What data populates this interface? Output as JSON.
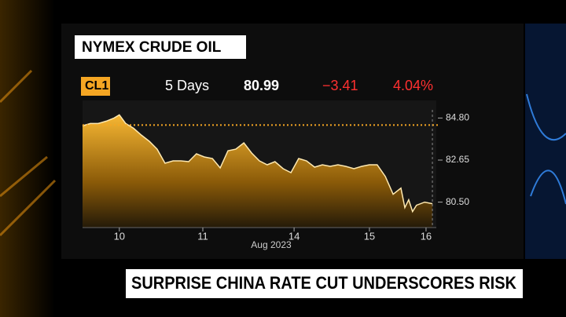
{
  "chart_data": {
    "type": "area",
    "title": "NYMEX CRUDE OIL",
    "header": {
      "period": "5 Days",
      "last": "80.99",
      "change": "−3.41",
      "change_pct": "4.04%"
    },
    "x": [
      0,
      2.2,
      4.4,
      6.7,
      8.9,
      10.4,
      12.2,
      14.4,
      16.7,
      18.9,
      21.1,
      23.3,
      25.6,
      27.8,
      30,
      32.2,
      34.4,
      36.7,
      38.9,
      41.1,
      43.3,
      45.6,
      47.8,
      50,
      52.2,
      54.4,
      56.7,
      58.9,
      61.1,
      63.3,
      65.6,
      67.8,
      70,
      72.2,
      74.4,
      76.7,
      78.9,
      81.1,
      83.3,
      85.6,
      87.8,
      90,
      91.1,
      92.2,
      93.3,
      94.4,
      96.7,
      98.9
    ],
    "series": [
      {
        "name": "CL1",
        "color": "#f5a623",
        "values": [
          84.4,
          84.52,
          84.52,
          84.64,
          84.8,
          84.96,
          84.52,
          84.28,
          83.92,
          83.61,
          83.21,
          82.49,
          82.61,
          82.61,
          82.57,
          82.97,
          82.81,
          82.73,
          82.25,
          83.13,
          83.21,
          83.53,
          83.01,
          82.61,
          82.41,
          82.57,
          82.21,
          82.01,
          82.73,
          82.61,
          82.29,
          82.41,
          82.33,
          82.41,
          82.33,
          82.21,
          82.33,
          82.41,
          82.41,
          81.81,
          80.9,
          81.22,
          80.22,
          80.62,
          80.02,
          80.34,
          80.5,
          80.42
        ]
      }
    ],
    "reference_line": 84.44,
    "xlim": [
      0,
      100
    ],
    "xticks": [
      {
        "value": 10.4,
        "label": "10"
      },
      {
        "value": 34,
        "label": "11"
      },
      {
        "value": 59.8,
        "label": "14"
      },
      {
        "value": 81.1,
        "label": "15"
      },
      {
        "value": 97.1,
        "label": "16"
      }
    ],
    "x_label": "Aug 2023",
    "ylim": [
      79.2,
      85.7
    ],
    "yticks": [
      {
        "value": 84.8,
        "label": "84.80"
      },
      {
        "value": 82.65,
        "label": "82.65"
      },
      {
        "value": 80.5,
        "label": "80.50"
      }
    ]
  },
  "banner": {
    "text": "SURPRISE CHINA RATE CUT UNDERSCORES RISK"
  }
}
